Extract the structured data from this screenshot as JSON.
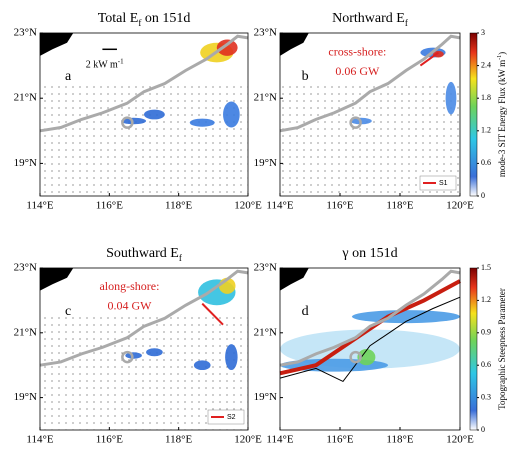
{
  "xlim": [
    114,
    120
  ],
  "ylim": [
    18,
    23
  ],
  "xticks": [
    {
      "value": 114,
      "label": "114°E"
    },
    {
      "value": 116,
      "label": "116°E"
    },
    {
      "value": 118,
      "label": "118°E"
    },
    {
      "value": 120,
      "label": "120°E"
    }
  ],
  "yticks": [
    {
      "value": 19,
      "label": "19°N"
    },
    {
      "value": 21,
      "label": "21°N"
    },
    {
      "value": 23,
      "label": "23°N"
    }
  ],
  "panels": [
    {
      "title": [
        "Total E",
        "f",
        " on 151d"
      ],
      "label": "a",
      "scale": [
        "2 kW m",
        "-1"
      ]
    },
    {
      "title": [
        "Northward E",
        "f",
        ""
      ],
      "label": "b",
      "note": [
        "cross-shore:",
        "0.06 GW"
      ],
      "legend": "S1"
    },
    {
      "title": [
        "Southward E",
        "f",
        ""
      ],
      "label": "c",
      "note": [
        "along-shore:",
        "0.04 GW"
      ],
      "legend": "S2"
    },
    {
      "title": [
        "γ on 151d"
      ],
      "label": "d"
    }
  ],
  "colorbars": [
    {
      "label": [
        "mode-3 SIT Energy Flux (kW m",
        "-1",
        ")"
      ],
      "lim": [
        0,
        3
      ],
      "ticks": [
        0,
        0.6,
        1.2,
        1.8,
        2.4,
        3
      ]
    },
    {
      "label": [
        "Topographic Steepness Parameter"
      ],
      "lim": [
        0,
        1.5
      ],
      "ticks": [
        0,
        0.3,
        0.6,
        0.9,
        1.2,
        1.5
      ]
    }
  ]
}
